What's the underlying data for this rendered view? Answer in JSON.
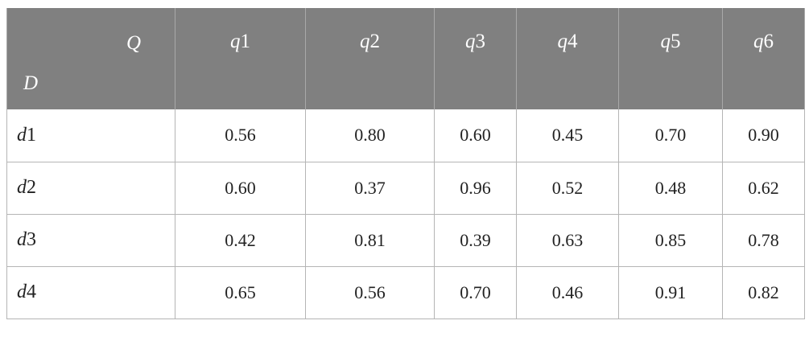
{
  "table": {
    "corner_top": "Q",
    "corner_bottom": "D",
    "columns": [
      {
        "var": "q",
        "idx": "1"
      },
      {
        "var": "q",
        "idx": "2"
      },
      {
        "var": "q",
        "idx": "3"
      },
      {
        "var": "q",
        "idx": "4"
      },
      {
        "var": "q",
        "idx": "5"
      },
      {
        "var": "q",
        "idx": "6"
      }
    ],
    "rows": [
      {
        "var": "d",
        "idx": "1",
        "values": [
          "0.56",
          "0.80",
          "0.60",
          "0.45",
          "0.70",
          "0.90"
        ]
      },
      {
        "var": "d",
        "idx": "2",
        "values": [
          "0.60",
          "0.37",
          "0.96",
          "0.52",
          "0.48",
          "0.62"
        ]
      },
      {
        "var": "d",
        "idx": "3",
        "values": [
          "0.42",
          "0.81",
          "0.39",
          "0.63",
          "0.85",
          "0.78"
        ]
      },
      {
        "var": "d",
        "idx": "4",
        "values": [
          "0.65",
          "0.56",
          "0.70",
          "0.46",
          "0.91",
          "0.82"
        ]
      }
    ]
  }
}
